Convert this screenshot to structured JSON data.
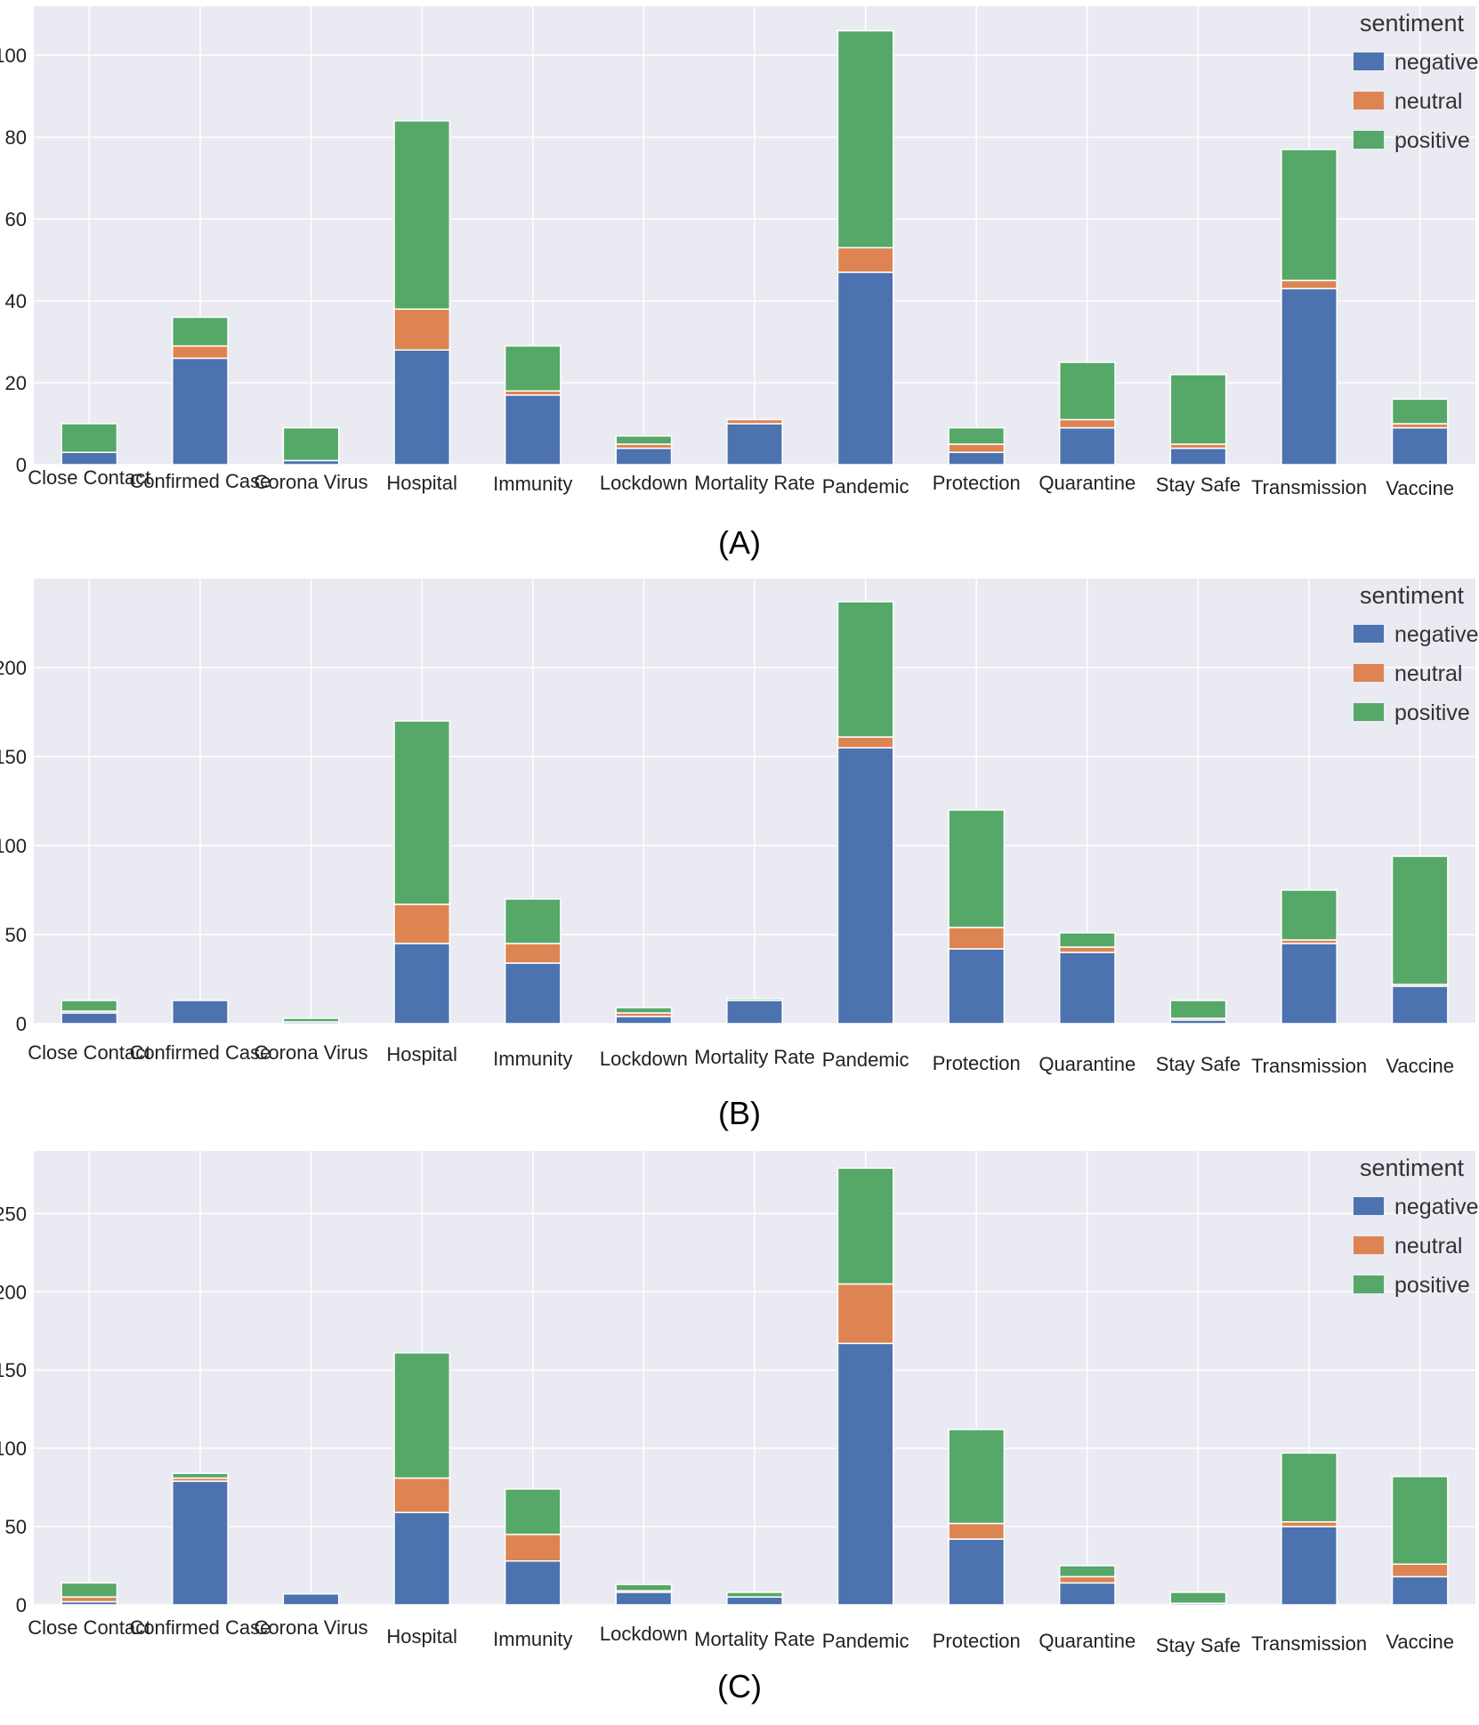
{
  "legend": {
    "title": "sentiment",
    "items": [
      {
        "label": "negative",
        "color": "#4c72b0"
      },
      {
        "label": "neutral",
        "color": "#dd8452"
      },
      {
        "label": "positive",
        "color": "#55a868"
      }
    ]
  },
  "colors": {
    "plot_background": "#eaeaf2",
    "grid": "#ffffff"
  },
  "chart_data": [
    {
      "type": "bar",
      "stacked": true,
      "caption": "(A)",
      "categories": [
        "Close Contact",
        "Confirmed Case",
        "Corona Virus",
        "Hospital",
        "Immunity",
        "Lockdown",
        "Mortality Rate",
        "Pandemic",
        "Protection",
        "Quarantine",
        "Stay Safe",
        "Transmission",
        "Vaccine"
      ],
      "series": [
        {
          "name": "negative",
          "values": [
            3,
            26,
            1,
            28,
            17,
            4,
            10,
            47,
            3,
            9,
            4,
            43,
            9
          ]
        },
        {
          "name": "neutral",
          "values": [
            0,
            3,
            0,
            10,
            1,
            1,
            1,
            6,
            2,
            2,
            1,
            2,
            1
          ]
        },
        {
          "name": "positive",
          "values": [
            7,
            7,
            8,
            46,
            11,
            2,
            0,
            53,
            4,
            14,
            17,
            32,
            6
          ]
        }
      ],
      "yticks": [
        0,
        20,
        40,
        60,
        80,
        100
      ],
      "ylim": [
        0,
        112
      ],
      "legend_position": "top-right",
      "grid": true
    },
    {
      "type": "bar",
      "stacked": true,
      "caption": "(B)",
      "categories": [
        "Close Contact",
        "Confirmed Case",
        "Corona Virus",
        "Hospital",
        "Immunity",
        "Lockdown",
        "Mortality Rate",
        "Pandemic",
        "Protection",
        "Quarantine",
        "Stay Safe",
        "Transmission",
        "Vaccine"
      ],
      "series": [
        {
          "name": "negative",
          "values": [
            6,
            13,
            1,
            45,
            34,
            4,
            13,
            155,
            42,
            40,
            2,
            45,
            21
          ]
        },
        {
          "name": "neutral",
          "values": [
            1,
            0,
            0,
            22,
            11,
            2,
            0,
            6,
            12,
            3,
            1,
            2,
            1
          ]
        },
        {
          "name": "positive",
          "values": [
            6,
            0,
            2,
            103,
            25,
            3,
            1,
            76,
            66,
            8,
            10,
            28,
            72
          ]
        }
      ],
      "yticks": [
        0,
        50,
        100,
        150,
        200
      ],
      "ylim": [
        0,
        250
      ],
      "legend_position": "top-right",
      "grid": true
    },
    {
      "type": "bar",
      "stacked": true,
      "caption": "(C)",
      "categories": [
        "Close Contact",
        "Confirmed Case",
        "Corona Virus",
        "Hospital",
        "Immunity",
        "Lockdown",
        "Mortality Rate",
        "Pandemic",
        "Protection",
        "Quarantine",
        "Stay Safe",
        "Transmission",
        "Vaccine"
      ],
      "series": [
        {
          "name": "negative",
          "values": [
            2,
            79,
            7,
            59,
            28,
            8,
            5,
            167,
            42,
            14,
            1,
            50,
            18
          ]
        },
        {
          "name": "neutral",
          "values": [
            3,
            2,
            0,
            22,
            17,
            1,
            0,
            38,
            10,
            4,
            0,
            3,
            8
          ]
        },
        {
          "name": "positive",
          "values": [
            9,
            3,
            0,
            80,
            29,
            4,
            3,
            74,
            60,
            7,
            7,
            44,
            56
          ]
        }
      ],
      "yticks": [
        0,
        50,
        100,
        150,
        200,
        250
      ],
      "ylim": [
        0,
        290
      ],
      "legend_position": "top-right",
      "grid": true
    }
  ]
}
